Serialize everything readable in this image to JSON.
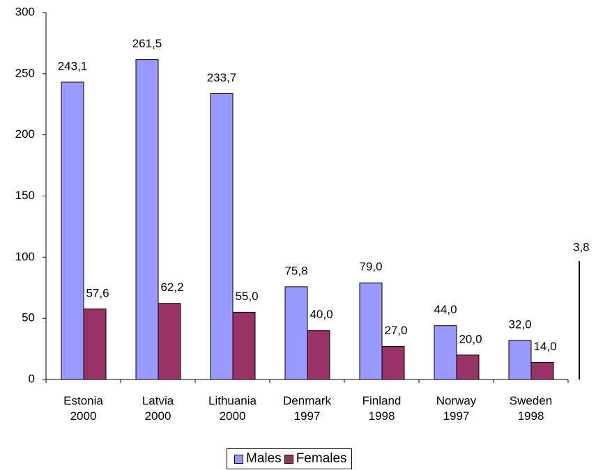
{
  "chart_data": {
    "type": "bar",
    "categories": [
      "Estonia 2000",
      "Latvia 2000",
      "Lithuania 2000",
      "Denmark 1997",
      "Finland 1998",
      "Norway 1997",
      "Sweden 1998"
    ],
    "series": [
      {
        "name": "Males",
        "color": "#9999ff",
        "values": [
          243.1,
          261.5,
          233.7,
          75.8,
          79.0,
          44.0,
          32.0
        ],
        "value_labels": [
          "243,1",
          "261,5",
          "233,7",
          "75,8",
          "79,0",
          "44,0",
          "32,0"
        ]
      },
      {
        "name": "Females",
        "color": "#993366",
        "values": [
          57.6,
          62.2,
          55.0,
          40.0,
          27.0,
          20.0,
          14.0
        ],
        "value_labels": [
          "57,6",
          "62,2",
          "55,0",
          "40,0",
          "27,0",
          "20,0",
          "14,0"
        ]
      }
    ],
    "ylim": [
      0,
      300
    ],
    "yticks": [
      0,
      50,
      100,
      150,
      200,
      250,
      300
    ],
    "annotation": "3,8"
  }
}
